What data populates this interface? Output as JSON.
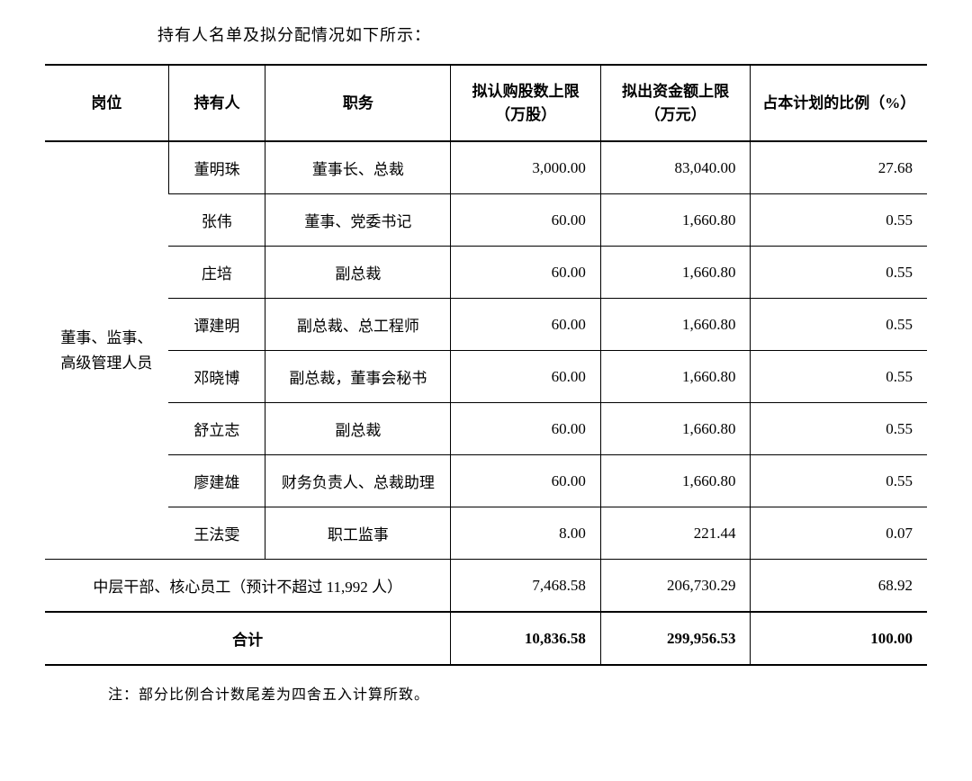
{
  "intro_text": "持有人名单及拟分配情况如下所示：",
  "headers": {
    "position": "岗位",
    "holder": "持有人",
    "title": "职务",
    "shares": "拟认购股数上限（万股）",
    "fund": "拟出资金额上限（万元）",
    "ratio": "占本计划的比例（%）"
  },
  "group_label": "董事、监事、高级管理人员",
  "rows": [
    {
      "holder": "董明珠",
      "title": "董事长、总裁",
      "shares": "3,000.00",
      "fund": "83,040.00",
      "ratio": "27.68"
    },
    {
      "holder": "张伟",
      "title": "董事、党委书记",
      "shares": "60.00",
      "fund": "1,660.80",
      "ratio": "0.55"
    },
    {
      "holder": "庄培",
      "title": "副总裁",
      "shares": "60.00",
      "fund": "1,660.80",
      "ratio": "0.55"
    },
    {
      "holder": "谭建明",
      "title": "副总裁、总工程师",
      "shares": "60.00",
      "fund": "1,660.80",
      "ratio": "0.55"
    },
    {
      "holder": "邓晓博",
      "title": "副总裁，董事会秘书",
      "shares": "60.00",
      "fund": "1,660.80",
      "ratio": "0.55"
    },
    {
      "holder": "舒立志",
      "title": "副总裁",
      "shares": "60.00",
      "fund": "1,660.80",
      "ratio": "0.55"
    },
    {
      "holder": "廖建雄",
      "title": "财务负责人、总裁助理",
      "shares": "60.00",
      "fund": "1,660.80",
      "ratio": "0.55"
    },
    {
      "holder": "王法雯",
      "title": "职工监事",
      "shares": "8.00",
      "fund": "221.44",
      "ratio": "0.07"
    }
  ],
  "subtotal": {
    "label": "中层干部、核心员工（预计不超过 11,992 人）",
    "shares": "7,468.58",
    "fund": "206,730.29",
    "ratio": "68.92"
  },
  "total": {
    "label": "合计",
    "shares": "10,836.58",
    "fund": "299,956.53",
    "ratio": "100.00"
  },
  "footnote": "注：部分比例合计数尾差为四舍五入计算所致。"
}
